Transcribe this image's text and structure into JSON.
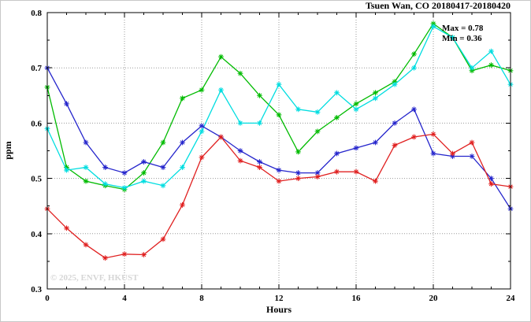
{
  "watermark": "© 2025, ENVF, HKUST",
  "chart_data": {
    "type": "line",
    "title": "Tsuen Wan, CO 20180417-20180420",
    "xlabel": "Hours",
    "ylabel": "ppm",
    "xlim": [
      0,
      24
    ],
    "ylim": [
      0.3,
      0.8
    ],
    "xticks": [
      0,
      4,
      8,
      12,
      16,
      20,
      24
    ],
    "yticks": [
      0.3,
      0.4,
      0.5,
      0.6,
      0.7,
      0.8
    ],
    "x_minor_step": 1,
    "y_minor_step": 0.05,
    "grid": true,
    "legend": "none",
    "marker": "star",
    "annotations": {
      "max": "Max = 0.78",
      "min": "Min = 0.36"
    },
    "x": [
      0,
      1,
      2,
      3,
      4,
      5,
      6,
      7,
      8,
      9,
      10,
      11,
      12,
      13,
      14,
      15,
      16,
      17,
      18,
      19,
      20,
      21,
      22,
      23,
      24
    ],
    "series": [
      {
        "name": "green",
        "color": "#00bb00",
        "values": [
          0.665,
          0.52,
          0.495,
          0.487,
          0.48,
          0.51,
          0.565,
          0.645,
          0.66,
          0.72,
          0.69,
          0.65,
          0.615,
          0.548,
          0.585,
          0.61,
          0.635,
          0.655,
          0.675,
          0.725,
          0.78,
          0.755,
          0.695,
          0.705,
          0.695
        ]
      },
      {
        "name": "cyan",
        "color": "#00dde0",
        "values": [
          0.59,
          0.515,
          0.52,
          0.49,
          0.483,
          0.495,
          0.487,
          0.52,
          0.585,
          0.66,
          0.6,
          0.6,
          0.67,
          0.625,
          0.62,
          0.655,
          0.625,
          0.645,
          0.67,
          0.7,
          0.775,
          0.755,
          0.7,
          0.73,
          0.67
        ]
      },
      {
        "name": "blue",
        "color": "#2525cc",
        "values": [
          0.7,
          0.635,
          0.565,
          0.52,
          0.51,
          0.53,
          0.52,
          0.565,
          0.595,
          0.575,
          0.55,
          0.53,
          0.515,
          0.51,
          0.51,
          0.545,
          0.555,
          0.565,
          0.6,
          0.625,
          0.545,
          0.54,
          0.54,
          0.5,
          0.445
        ]
      },
      {
        "name": "red",
        "color": "#e02020",
        "values": [
          0.445,
          0.41,
          0.38,
          0.356,
          0.363,
          0.362,
          0.39,
          0.452,
          0.538,
          0.575,
          0.532,
          0.52,
          0.495,
          0.5,
          0.503,
          0.512,
          0.512,
          0.495,
          0.56,
          0.575,
          0.58,
          0.545,
          0.565,
          0.49,
          0.485
        ]
      }
    ]
  }
}
